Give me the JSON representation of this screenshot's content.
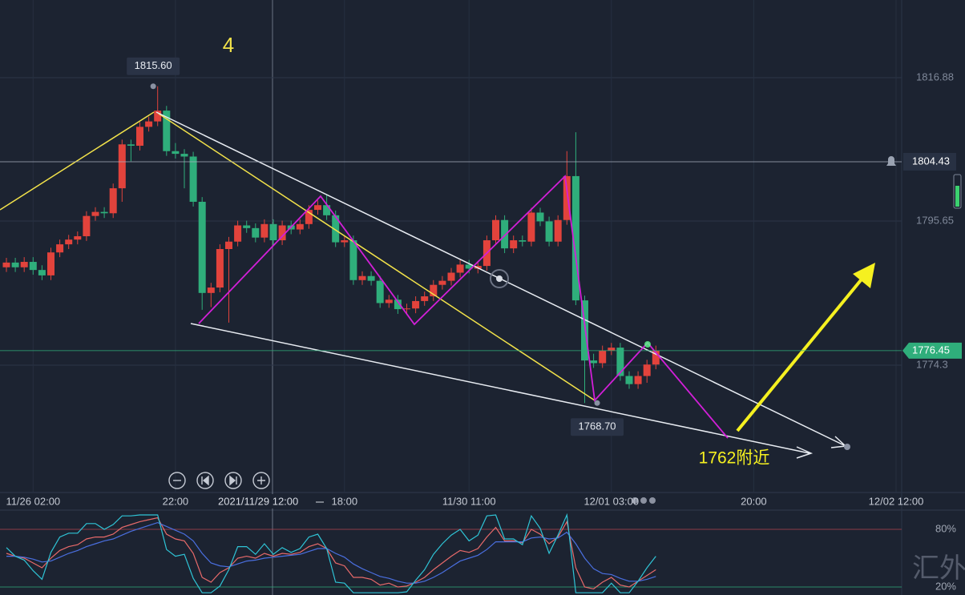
{
  "chart_data": {
    "type": "candlestick",
    "up_color": "#e2433c",
    "down_color": "#2fae7b",
    "ylim": [
      1755.45,
      1828.38
    ],
    "yticks": [
      1816.88,
      1795.65,
      1774.3
    ],
    "grid": true,
    "alert_price": 1804.43,
    "last_price": 1776.45,
    "high_label": {
      "value": 1815.6,
      "label": "1815.60"
    },
    "low_label": {
      "value": 1768.7,
      "label": "1768.70"
    },
    "wave_label": "4",
    "target_label": "1762附近",
    "crosshair_time": "2021/11/29 12:00",
    "watermark": "汇外网",
    "categories": [
      null,
      null,
      null,
      "11/26 02:00",
      null,
      null,
      null,
      null,
      null,
      null,
      null,
      null,
      null,
      null,
      null,
      null,
      null,
      null,
      null,
      "22:00",
      null,
      null,
      null,
      null,
      null,
      null,
      null,
      null,
      null,
      null,
      null,
      null,
      null,
      null,
      null,
      null,
      null,
      null,
      "18:00",
      null,
      null,
      null,
      null,
      null,
      null,
      null,
      null,
      null,
      null,
      null,
      null,
      null,
      "11/30 11:00",
      null,
      null,
      null,
      null,
      null,
      null,
      null,
      null,
      null,
      null,
      null,
      null,
      null,
      null,
      null,
      "12/01 03:00",
      null,
      null,
      null,
      null,
      null,
      null,
      null,
      null,
      null,
      null,
      null,
      null,
      null,
      null,
      null,
      "20:00",
      null,
      null,
      null,
      null,
      null,
      null,
      null,
      null,
      null,
      null,
      null,
      null,
      null,
      null,
      null,
      "12/02 12:00"
    ],
    "candles": [
      [
        1788.8,
        1790.2,
        1788.1,
        1789.5
      ],
      [
        1789.5,
        1790.2,
        1788.1,
        1788.8
      ],
      [
        1788.8,
        1790.3,
        1788.1,
        1789.6
      ],
      [
        1789.6,
        1790.3,
        1787.7,
        1788.4
      ],
      [
        1788.4,
        1789.1,
        1786.9,
        1787.6
      ],
      [
        1787.6,
        1791.7,
        1786.9,
        1791.0
      ],
      [
        1791.0,
        1792.9,
        1790.3,
        1792.2
      ],
      [
        1792.2,
        1793.6,
        1791.5,
        1792.9
      ],
      [
        1792.9,
        1794.1,
        1792.2,
        1793.4
      ],
      [
        1793.4,
        1797.1,
        1792.7,
        1796.4
      ],
      [
        1796.4,
        1797.7,
        1795.7,
        1797.0
      ],
      [
        1797.0,
        1797.7,
        1796.1,
        1796.8
      ],
      [
        1796.8,
        1801.2,
        1796.1,
        1800.5
      ],
      [
        1800.5,
        1807.7,
        1798.5,
        1807.0
      ],
      [
        1807.0,
        1807.7,
        1804.5,
        1806.8
      ],
      [
        1806.8,
        1810.3,
        1806.1,
        1809.6
      ],
      [
        1809.6,
        1811.1,
        1808.9,
        1810.4
      ],
      [
        1810.4,
        1815.6,
        1809.7,
        1812.0
      ],
      [
        1812.0,
        1812.7,
        1805.3,
        1806.0
      ],
      [
        1806.0,
        1807.2,
        1804.9,
        1805.6
      ],
      [
        1805.6,
        1806.3,
        1800.5,
        1805.2
      ],
      [
        1805.2,
        1805.9,
        1797.8,
        1798.5
      ],
      [
        1798.5,
        1799.2,
        1782.5,
        1785.0
      ],
      [
        1785.0,
        1786.5,
        1782.9,
        1785.8
      ],
      [
        1785.8,
        1792.2,
        1785.1,
        1791.5
      ],
      [
        1791.5,
        1793.3,
        1780.6,
        1792.6
      ],
      [
        1792.6,
        1795.7,
        1791.9,
        1795.0
      ],
      [
        1795.0,
        1795.7,
        1793.9,
        1794.6
      ],
      [
        1794.6,
        1795.3,
        1792.5,
        1793.2
      ],
      [
        1793.2,
        1795.9,
        1792.5,
        1795.2
      ],
      [
        1795.2,
        1795.9,
        1792.1,
        1792.8
      ],
      [
        1792.8,
        1795.7,
        1792.1,
        1795.0
      ],
      [
        1795.0,
        1795.7,
        1793.7,
        1794.4
      ],
      [
        1794.4,
        1795.9,
        1793.7,
        1795.2
      ],
      [
        1795.2,
        1798.0,
        1794.5,
        1797.3
      ],
      [
        1797.3,
        1798.7,
        1796.6,
        1798.0
      ],
      [
        1798.0,
        1799.6,
        1795.8,
        1796.5
      ],
      [
        1796.5,
        1797.2,
        1791.8,
        1792.5
      ],
      [
        1792.5,
        1793.5,
        1791.8,
        1792.8
      ],
      [
        1792.8,
        1793.5,
        1786.2,
        1786.9
      ],
      [
        1786.9,
        1788.2,
        1786.2,
        1787.5
      ],
      [
        1787.5,
        1788.2,
        1786.1,
        1786.8
      ],
      [
        1786.8,
        1787.5,
        1782.8,
        1783.5
      ],
      [
        1783.5,
        1784.7,
        1782.8,
        1784.0
      ],
      [
        1784.0,
        1784.7,
        1781.9,
        1782.6
      ],
      [
        1782.6,
        1783.4,
        1781.9,
        1782.7
      ],
      [
        1782.7,
        1784.5,
        1782.0,
        1783.8
      ],
      [
        1783.8,
        1785.2,
        1783.1,
        1784.5
      ],
      [
        1784.5,
        1786.9,
        1783.8,
        1786.2
      ],
      [
        1786.2,
        1787.5,
        1785.5,
        1786.8
      ],
      [
        1786.8,
        1788.7,
        1786.1,
        1788.0
      ],
      [
        1788.0,
        1789.9,
        1787.3,
        1789.2
      ],
      [
        1789.2,
        1789.9,
        1787.9,
        1788.6
      ],
      [
        1788.6,
        1789.7,
        1787.9,
        1789.0
      ],
      [
        1789.0,
        1793.5,
        1788.3,
        1792.8
      ],
      [
        1792.8,
        1796.5,
        1792.1,
        1795.8
      ],
      [
        1795.8,
        1796.5,
        1790.9,
        1791.6
      ],
      [
        1791.6,
        1793.5,
        1790.9,
        1792.8
      ],
      [
        1792.8,
        1793.5,
        1791.9,
        1792.6
      ],
      [
        1792.6,
        1797.6,
        1791.9,
        1796.9
      ],
      [
        1796.9,
        1797.6,
        1794.9,
        1795.6
      ],
      [
        1795.6,
        1796.3,
        1791.9,
        1792.6
      ],
      [
        1792.6,
        1796.5,
        1791.9,
        1795.8
      ],
      [
        1795.8,
        1806.0,
        1795.1,
        1802.3
      ],
      [
        1802.3,
        1808.8,
        1783.2,
        1783.9
      ],
      [
        1783.9,
        1784.6,
        1768.7,
        1775.0
      ],
      [
        1775.0,
        1776.0,
        1773.9,
        1774.6
      ],
      [
        1774.6,
        1777.2,
        1773.9,
        1776.5
      ],
      [
        1776.5,
        1777.6,
        1775.8,
        1776.9
      ],
      [
        1776.9,
        1777.6,
        1772.0,
        1772.7
      ],
      [
        1772.7,
        1773.4,
        1770.8,
        1771.5
      ],
      [
        1771.5,
        1773.4,
        1770.8,
        1772.7
      ],
      [
        1772.7,
        1775.1,
        1771.7,
        1774.4
      ],
      [
        1774.4,
        1777.2,
        1773.7,
        1776.45
      ],
      null,
      null,
      null,
      null,
      null,
      null,
      null,
      null,
      null,
      null,
      null,
      null,
      null,
      null,
      null,
      null,
      null,
      null,
      null,
      null,
      null,
      null,
      null,
      null,
      null,
      null,
      null
    ],
    "indicator": {
      "ylim": [
        11.7,
        100
      ],
      "yticks": [
        {
          "value": 80,
          "label": "80%"
        },
        {
          "value": 20,
          "label": "20%"
        }
      ],
      "series": [
        {
          "color": "#e86a6a",
          "values": [
            55,
            52,
            50,
            45,
            40,
            50,
            58,
            62,
            64,
            70,
            72,
            72,
            75,
            82,
            85,
            88,
            90,
            92,
            75,
            70,
            68,
            55,
            30,
            25,
            35,
            40,
            50,
            52,
            50,
            55,
            52,
            55,
            54,
            56,
            62,
            65,
            60,
            45,
            42,
            30,
            30,
            28,
            22,
            24,
            20,
            21,
            25,
            30,
            38,
            45,
            52,
            58,
            56,
            60,
            72,
            82,
            68,
            68,
            66,
            80,
            75,
            65,
            72,
            88,
            40,
            20,
            18,
            25,
            30,
            22,
            20,
            26,
            32,
            38,
            null,
            null,
            null,
            null,
            null,
            null,
            null,
            null,
            null,
            null,
            null,
            null,
            null,
            null,
            null,
            null,
            null,
            null,
            null,
            null,
            null,
            null,
            null,
            null,
            null,
            null,
            null
          ]
        },
        {
          "color": "#4a6fe0",
          "values": [
            52,
            52,
            51,
            49,
            46,
            47,
            51,
            55,
            58,
            62,
            65,
            68,
            70,
            74,
            78,
            81,
            84,
            87,
            83,
            79,
            75,
            68,
            55,
            45,
            42,
            41,
            44,
            47,
            48,
            50,
            51,
            52,
            53,
            54,
            57,
            60,
            60,
            55,
            51,
            44,
            39,
            35,
            31,
            29,
            26,
            24,
            24,
            26,
            30,
            35,
            41,
            47,
            50,
            53,
            59,
            67,
            67,
            67,
            67,
            71,
            72,
            70,
            71,
            77,
            65,
            50,
            39,
            34,
            33,
            29,
            26,
            26,
            28,
            31,
            null,
            null,
            null,
            null,
            null,
            null,
            null,
            null,
            null,
            null,
            null,
            null,
            null,
            null,
            null,
            null,
            null,
            null,
            null,
            null,
            null,
            null,
            null,
            null,
            null,
            null,
            null
          ]
        },
        {
          "color": "#2fc4d6",
          "values": [
            61,
            52,
            48,
            37,
            28,
            56,
            72,
            76,
            76,
            86,
            86,
            80,
            85,
            94,
            94,
            95,
            95,
            95,
            59,
            52,
            54,
            29,
            14,
            14,
            21,
            38,
            62,
            62,
            54,
            65,
            54,
            61,
            56,
            60,
            72,
            75,
            60,
            25,
            24,
            14,
            14,
            14,
            14,
            14,
            14,
            15,
            27,
            38,
            54,
            65,
            74,
            80,
            68,
            74,
            94,
            95,
            70,
            70,
            64,
            94,
            81,
            55,
            74,
            95,
            14,
            14,
            14,
            14,
            24,
            14,
            14,
            26,
            40,
            52,
            null,
            null,
            null,
            null,
            null,
            null,
            null,
            null,
            null,
            null,
            null,
            null,
            null,
            null,
            null,
            null,
            null,
            null,
            null,
            null,
            null,
            null,
            null,
            null,
            null,
            null,
            null
          ]
        }
      ]
    }
  }
}
